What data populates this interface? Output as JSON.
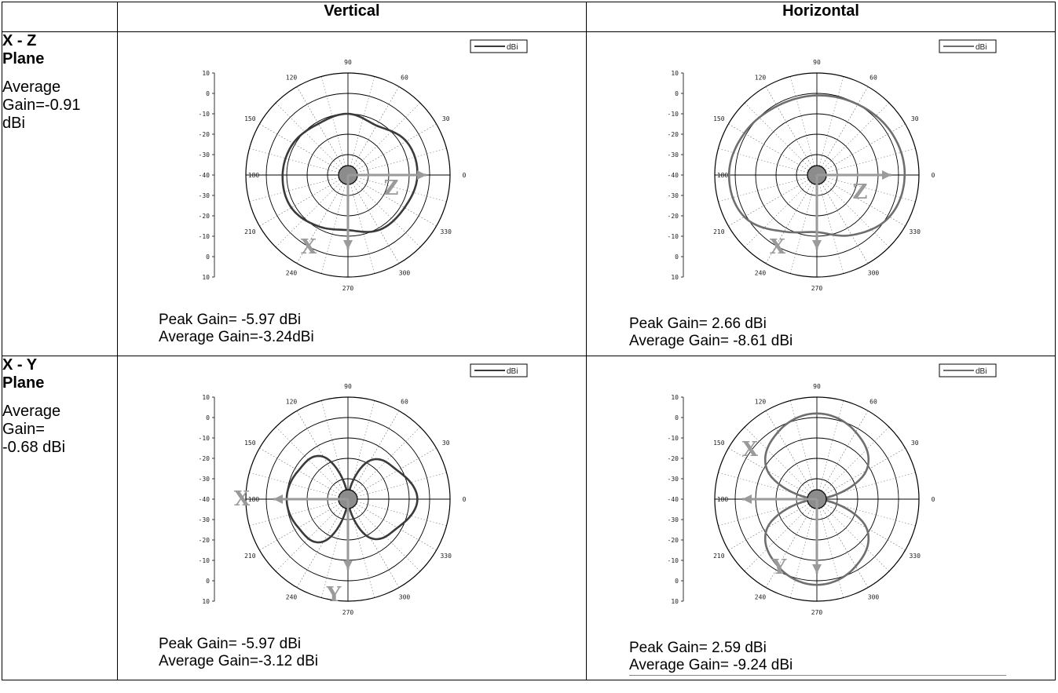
{
  "header": {
    "corner": "",
    "vertical": "Vertical",
    "horizontal": "Horizontal"
  },
  "rows": [
    {
      "plane": "X - Z\nPlane",
      "average_label": "Average\nGain=-0.91\ndBi",
      "vertical": {
        "peak": "Peak Gain= -5.97 dBi",
        "average": "Average Gain=-3.24dBi",
        "arrows": [
          "X",
          "Z"
        ]
      },
      "horizontal": {
        "peak": "Peak Gain= 2.66 dBi",
        "average": "Average Gain=   -8.61 dBi",
        "arrows": [
          "X",
          "Z"
        ]
      }
    },
    {
      "plane": "X - Y\nPlane",
      "average_label": "Average\nGain=\n-0.68 dBi",
      "vertical": {
        "peak": "Peak Gain= -5.97 dBi",
        "average": "Average Gain=-3.12 dBi",
        "arrows": [
          "X",
          "Y"
        ]
      },
      "horizontal": {
        "peak": "Peak Gain= 2.59 dBi",
        "average": "Average Gain= -9.24 dBi",
        "arrows": [
          "X",
          "Y"
        ]
      }
    }
  ],
  "polar_common": {
    "legend": "dBi",
    "angle_labels": [
      "0",
      "30",
      "60",
      "90",
      "120",
      "150",
      "180",
      "210",
      "240",
      "270",
      "300",
      "330"
    ],
    "radial_scale_labels": [
      "10",
      "0",
      "-10",
      "-20",
      "-30",
      "-40",
      "-30",
      "-20",
      "-10",
      "0",
      "10"
    ],
    "center_label": "180",
    "right_label": "0"
  },
  "chart_data": [
    {
      "type": "polar",
      "panel": "X-Z Vertical",
      "r_range": [
        -40,
        10
      ],
      "unit": "dBi",
      "legend": "dBi",
      "theta_deg": [
        0,
        30,
        60,
        90,
        120,
        150,
        180,
        210,
        240,
        270,
        300,
        330
      ],
      "r_dbi": [
        -6,
        -7,
        -12,
        -10,
        -11,
        -9,
        -8,
        -8,
        -11,
        -13,
        -9,
        -8
      ],
      "color": "#3a3a3a"
    },
    {
      "type": "polar",
      "panel": "X-Z Horizontal",
      "r_range": [
        -40,
        10
      ],
      "unit": "dBi",
      "legend": "dBi",
      "theta_deg": [
        0,
        30,
        60,
        90,
        120,
        150,
        180,
        210,
        240,
        270,
        300,
        330
      ],
      "r_dbi": [
        3,
        2,
        0,
        -1,
        -1,
        1,
        3,
        1,
        -8,
        -12,
        -6,
        1
      ],
      "color": "#6e6e6e"
    },
    {
      "type": "polar",
      "panel": "X-Y Vertical",
      "r_range": [
        -40,
        10
      ],
      "unit": "dBi",
      "legend": "dBi",
      "theta_deg": [
        0,
        30,
        60,
        90,
        120,
        150,
        180,
        210,
        240,
        270,
        300,
        330
      ],
      "r_dbi": [
        -6,
        -12,
        -18,
        -40,
        -16,
        -12,
        -10,
        -12,
        -16,
        -40,
        -18,
        -12
      ],
      "color": "#3a3a3a"
    },
    {
      "type": "polar",
      "panel": "X-Y Horizontal",
      "r_range": [
        -40,
        10
      ],
      "unit": "dBi",
      "legend": "dBi",
      "theta_deg": [
        0,
        30,
        60,
        90,
        120,
        150,
        180,
        210,
        240,
        270,
        300,
        330
      ],
      "r_dbi": [
        -40,
        -12,
        -2,
        2,
        -2,
        -12,
        -40,
        -12,
        -2,
        2,
        -2,
        -12
      ],
      "color": "#6e6e6e"
    }
  ]
}
